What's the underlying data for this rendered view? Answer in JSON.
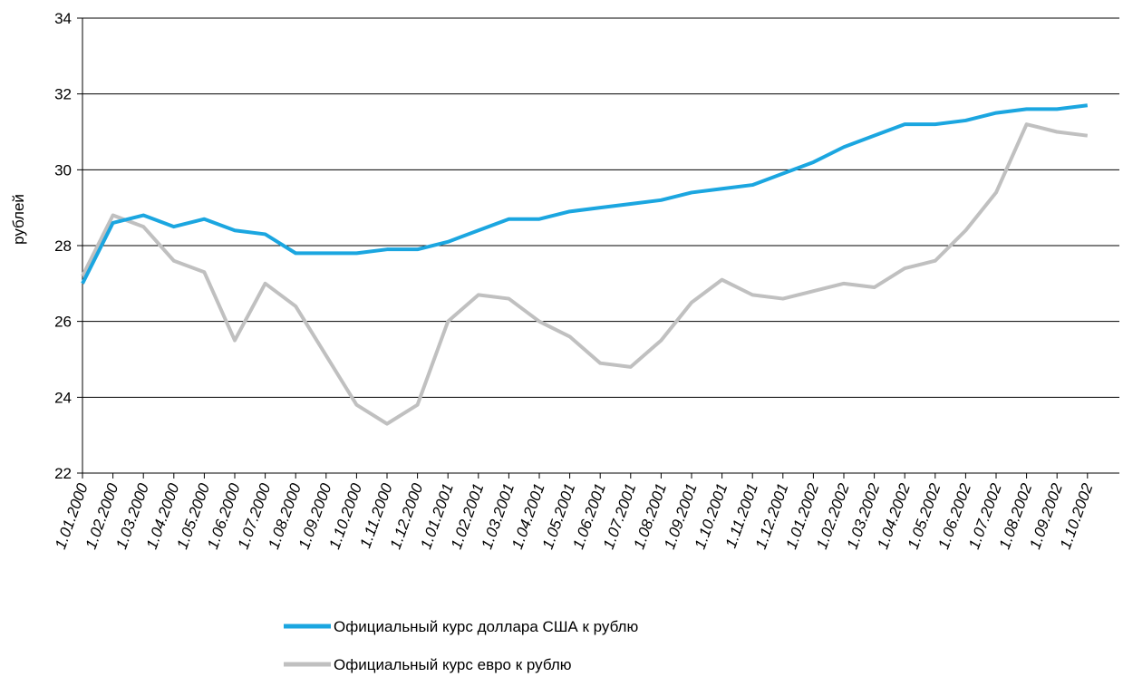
{
  "chart_data": {
    "type": "line",
    "y_label": "рублей",
    "categories": [
      "1.01.2000",
      "1.02.2000",
      "1.03.2000",
      "1.04.2000",
      "1.05.2000",
      "1.06.2000",
      "1.07.2000",
      "1.08.2000",
      "1.09.2000",
      "1.10.2000",
      "1.11.2000",
      "1.12.2000",
      "1.01.2001",
      "1.02.2001",
      "1.03.2001",
      "1.04.2001",
      "1.05.2001",
      "1.06.2001",
      "1.07.2001",
      "1.08.2001",
      "1.09.2001",
      "1.10.2001",
      "1.11.2001",
      "1.12.2001",
      "1.01.2002",
      "1.02.2002",
      "1.03.2002",
      "1.04.2002",
      "1.05.2002",
      "1.06.2002",
      "1.07.2002",
      "1.08.2002",
      "1.09.2002",
      "1.10.2002"
    ],
    "series": [
      {
        "name": "Официальный курс доллара США к рублю",
        "color": "#1ba6e0",
        "values": [
          27.0,
          28.6,
          28.8,
          28.5,
          28.7,
          28.4,
          28.3,
          27.8,
          27.8,
          27.8,
          27.9,
          27.9,
          28.1,
          28.4,
          28.7,
          28.7,
          28.9,
          29.0,
          29.1,
          29.2,
          29.4,
          29.5,
          29.6,
          29.9,
          30.2,
          30.6,
          30.9,
          31.2,
          31.2,
          31.3,
          31.5,
          31.6,
          31.6,
          31.7
        ]
      },
      {
        "name": "Официальный курс евро к рублю",
        "color": "#c0c0c0",
        "values": [
          27.2,
          28.8,
          28.5,
          27.6,
          27.3,
          25.5,
          27.0,
          26.4,
          25.1,
          23.8,
          23.3,
          23.8,
          26.0,
          26.7,
          26.6,
          26.0,
          25.6,
          24.9,
          24.8,
          25.5,
          26.5,
          27.1,
          26.7,
          26.6,
          26.8,
          27.0,
          26.9,
          27.4,
          27.6,
          28.4,
          29.4,
          31.2,
          31.0,
          30.9
        ]
      }
    ],
    "ylim": [
      22,
      34
    ],
    "yticks": [
      22,
      24,
      26,
      28,
      30,
      32,
      34
    ],
    "grid": true
  }
}
